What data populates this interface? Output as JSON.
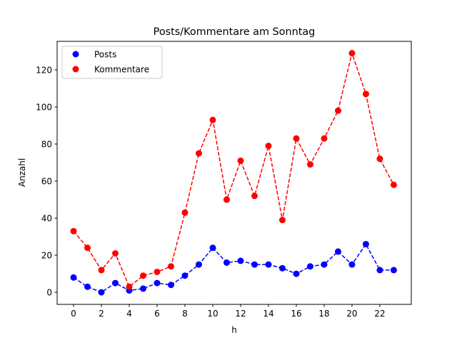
{
  "chart_data": {
    "type": "line",
    "title": "Posts/Kommentare am Sonntag",
    "xlabel": "h",
    "ylabel": "Anzahl",
    "x": [
      0,
      1,
      2,
      3,
      4,
      5,
      6,
      7,
      8,
      9,
      10,
      11,
      12,
      13,
      14,
      15,
      16,
      17,
      18,
      19,
      20,
      21,
      22,
      23
    ],
    "xlim": [
      -1.18,
      24.26
    ],
    "ylim": [
      -6.5,
      135.4
    ],
    "xticks": [
      0,
      2,
      4,
      6,
      8,
      10,
      12,
      14,
      16,
      18,
      20,
      22
    ],
    "yticks": [
      0,
      20,
      40,
      60,
      80,
      100,
      120
    ],
    "grid": false,
    "legend_position": "top-left",
    "series": [
      {
        "name": "Posts",
        "color": "#0000ff",
        "values": [
          8,
          3,
          0,
          5,
          1,
          2,
          5,
          4,
          9,
          15,
          24,
          16,
          17,
          15,
          15,
          13,
          10,
          14,
          15,
          22,
          15,
          26,
          12,
          12
        ]
      },
      {
        "name": "Kommentare",
        "color": "#ff0000",
        "values": [
          33,
          24,
          12,
          21,
          3,
          9,
          11,
          14,
          43,
          75,
          93,
          50,
          71,
          52,
          79,
          39,
          83,
          69,
          83,
          98,
          129,
          107,
          72,
          58
        ]
      }
    ]
  }
}
